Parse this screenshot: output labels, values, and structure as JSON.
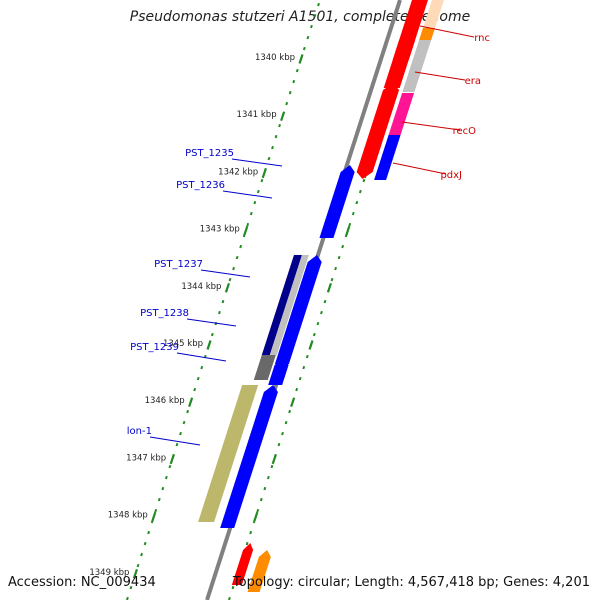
{
  "title": "Pseudomonas stutzeri A1501, complete genome",
  "footer": {
    "accession": "Accession: NC_009434",
    "topology": "Topology: circular; Length: 4,567,418 bp; Genes: 4,201"
  },
  "colors": {
    "backbone": "#808080",
    "tick_major": "#228b22",
    "tick_minor": "#228b22",
    "gene_blue": "#0000ff",
    "gene_red": "#ff0000",
    "gene_orange": "#ff8c00",
    "gene_magenta": "#ff1493",
    "gene_navy": "#00008b",
    "gene_gray": "#c0c0c0",
    "gene_darkgray": "#696969",
    "gene_khaki": "#bdb76b",
    "gene_peach": "#ffdab9",
    "label_blue": "#0000cd",
    "label_red": "#cc0000"
  },
  "ruler": [
    {
      "label": "1340 kbp",
      "kbp": 1340
    },
    {
      "label": "1341 kbp",
      "kbp": 1341
    },
    {
      "label": "1342 kbp",
      "kbp": 1342
    },
    {
      "label": "1343 kbp",
      "kbp": 1343
    },
    {
      "label": "1344 kbp",
      "kbp": 1344
    },
    {
      "label": "1345 kbp",
      "kbp": 1345
    },
    {
      "label": "1346 kbp",
      "kbp": 1346
    },
    {
      "label": "1347 kbp",
      "kbp": 1347
    },
    {
      "label": "1348 kbp",
      "kbp": 1348
    },
    {
      "label": "1349 kbp",
      "kbp": 1349
    }
  ],
  "genes_right": [
    {
      "label": "rnc"
    },
    {
      "label": "era"
    },
    {
      "label": "recO"
    },
    {
      "label": "pdxJ"
    }
  ],
  "genes_left": [
    {
      "label": "PST_1235"
    },
    {
      "label": "PST_1236"
    },
    {
      "label": "PST_1237"
    },
    {
      "label": "PST_1238"
    },
    {
      "label": "PST_1239"
    },
    {
      "label": "lon-1"
    }
  ]
}
